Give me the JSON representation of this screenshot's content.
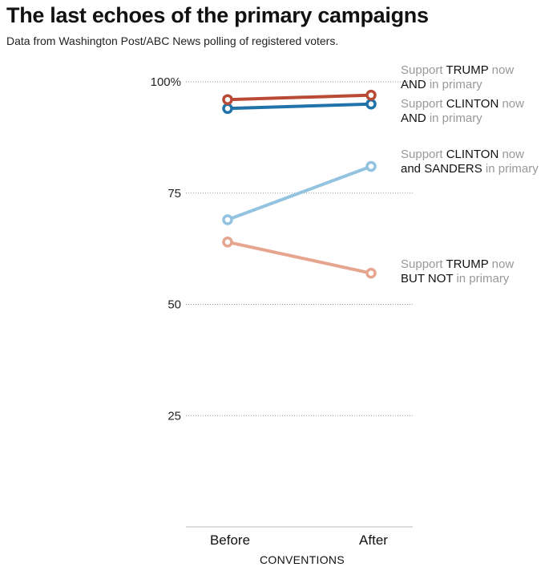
{
  "title": "The last echoes of the primary campaigns",
  "subtitle": "Data from Washington Post/ABC News polling of registered voters.",
  "colors": {
    "trump_and": "#b84a36",
    "clinton_and": "#1f73a8",
    "clinton_sanders": "#93c3e0",
    "trump_not": "#e6a58e",
    "grid": "#999999",
    "axis": "#bbbbbb"
  },
  "chart_data": {
    "type": "line",
    "categories": [
      "Before",
      "After"
    ],
    "xlabel": "CONVENTIONS",
    "ylabel": "",
    "ylim": [
      0,
      100
    ],
    "y_ticks": [
      {
        "value": 100,
        "label": "100%"
      },
      {
        "value": 75,
        "label": "75"
      },
      {
        "value": 50,
        "label": "50"
      },
      {
        "value": 25,
        "label": "25"
      }
    ],
    "grid": "dotted horizontal",
    "series": [
      {
        "key": "trump_and",
        "values": [
          96,
          97
        ],
        "color": "#b84a36",
        "label": {
          "line1": [
            {
              "t": "Support ",
              "s": false
            },
            {
              "t": "TRUMP",
              "s": true
            },
            {
              "t": " now",
              "s": false
            }
          ],
          "line2": [
            {
              "t": "AND",
              "s": true
            },
            {
              "t": " in primary",
              "s": false
            }
          ]
        }
      },
      {
        "key": "clinton_and",
        "values": [
          94,
          95
        ],
        "color": "#1f73a8",
        "label": {
          "line1": [
            {
              "t": "Support ",
              "s": false
            },
            {
              "t": "CLINTON",
              "s": true
            },
            {
              "t": " now",
              "s": false
            }
          ],
          "line2": [
            {
              "t": "AND",
              "s": true
            },
            {
              "t": " in primary",
              "s": false
            }
          ]
        }
      },
      {
        "key": "clinton_sanders",
        "values": [
          69,
          81
        ],
        "color": "#93c3e0",
        "label": {
          "line1": [
            {
              "t": "Support ",
              "s": false
            },
            {
              "t": "CLINTON",
              "s": true
            },
            {
              "t": " now",
              "s": false
            }
          ],
          "line2": [
            {
              "t": "and SANDERS",
              "s": true
            },
            {
              "t": " in primary",
              "s": false
            }
          ]
        }
      },
      {
        "key": "trump_not",
        "values": [
          64,
          57
        ],
        "color": "#e6a58e",
        "label": {
          "line1": [
            {
              "t": "Support ",
              "s": false
            },
            {
              "t": "TRUMP",
              "s": true
            },
            {
              "t": " now",
              "s": false
            }
          ],
          "line2": [
            {
              "t": "BUT NOT",
              "s": true
            },
            {
              "t": " in primary",
              "s": false
            }
          ]
        }
      }
    ]
  }
}
